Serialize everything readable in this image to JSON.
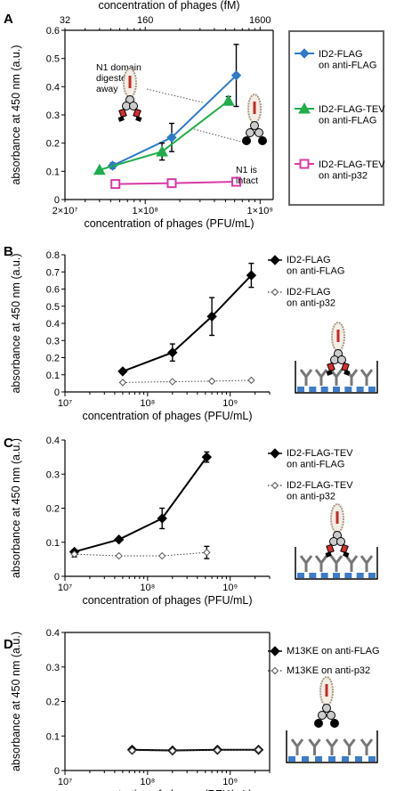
{
  "figure": {
    "panel_labels": [
      "A",
      "B",
      "C",
      "D"
    ]
  },
  "chart_data": [
    {
      "panel": "A",
      "type": "line",
      "title": "",
      "xlabel": "concentration of phages (PFU/mL)",
      "ylabel": "absorbance at 450 nm (a.u.)",
      "x2label": "concentration of phages (fM)",
      "xscale": "log",
      "xlim": [
        20000000,
        1300000000
      ],
      "ylim": [
        0,
        0.6
      ],
      "xticks": [
        {
          "v": 20000000,
          "label": "2×10⁷"
        },
        {
          "v": 100000000,
          "label": "1×10⁸"
        },
        {
          "v": 1000000000,
          "label": "1×10⁹"
        }
      ],
      "x2ticks": [
        {
          "v": 20000000,
          "label": "32"
        },
        {
          "v": 100000000,
          "label": "160"
        },
        {
          "v": 1000000000,
          "label": "1600"
        }
      ],
      "yticks": [
        "0",
        "0.1",
        "0.2",
        "0.3",
        "0.4",
        "0.5",
        "0.6"
      ],
      "legend_position": "right-boxed",
      "series": [
        {
          "name": "ID2-FLAG\non anti-FLAG",
          "color": "#2f7ac5",
          "marker": "diamond",
          "line": "solid",
          "x": [
            52000000,
            170000000,
            620000000
          ],
          "y": [
            0.12,
            0.22,
            0.44
          ],
          "err": [
            0.01,
            0.05,
            0.11
          ]
        },
        {
          "name": "ID2-FLAG-TEV\non anti-FLAG",
          "color": "#1fae4b",
          "marker": "triangle",
          "line": "solid",
          "x": [
            40000000,
            140000000,
            530000000
          ],
          "y": [
            0.105,
            0.17,
            0.35
          ],
          "err": [
            0,
            0.03,
            0.015
          ]
        },
        {
          "name": "ID2-FLAG-TEV\non anti-p32",
          "color": "#d83aa6",
          "marker": "square-open",
          "line": "solid",
          "x": [
            55000000,
            170000000,
            620000000
          ],
          "y": [
            0.055,
            0.058,
            0.063
          ],
          "err": [
            0.004,
            0.004,
            0.004
          ]
        }
      ],
      "annotations": [
        "N1 domain\ndigested\naway",
        "N1 is\nintact"
      ]
    },
    {
      "panel": "B",
      "type": "line",
      "title": "",
      "xlabel": "concentration of phages (PFU/mL)",
      "ylabel": "absorbance at 450 nm (a.u.)",
      "xscale": "log",
      "xlim": [
        10000000,
        3000000000
      ],
      "ylim": [
        0,
        0.8
      ],
      "xticks": [
        {
          "v": 10000000,
          "label": "10⁷"
        },
        {
          "v": 100000000,
          "label": "10⁸"
        },
        {
          "v": 1000000000,
          "label": "10⁹"
        }
      ],
      "yticks": [
        "0",
        "0.1",
        "0.2",
        "0.3",
        "0.4",
        "0.5",
        "0.6",
        "0.7",
        "0.8"
      ],
      "legend_position": "right",
      "series": [
        {
          "name": "ID2-FLAG\non anti-FLAG",
          "color": "#000000",
          "marker": "diamond",
          "line": "solid",
          "x": [
            50000000,
            200000000,
            600000000,
            1800000000
          ],
          "y": [
            0.12,
            0.23,
            0.44,
            0.68
          ],
          "err": [
            0.01,
            0.05,
            0.11,
            0.07
          ]
        },
        {
          "name": "ID2-FLAG\non anti-p32",
          "color": "#000000",
          "marker": "diamond-open",
          "line": "dotted",
          "x": [
            50000000,
            200000000,
            600000000,
            1800000000
          ],
          "y": [
            0.055,
            0.06,
            0.063,
            0.068
          ],
          "err": [
            0,
            0,
            0,
            0
          ]
        }
      ]
    },
    {
      "panel": "C",
      "type": "line",
      "title": "",
      "xlabel": "concentration of phages (PFU/mL)",
      "ylabel": "absorbance at 450 nm (a.u.)",
      "xscale": "log",
      "xlim": [
        10000000,
        3000000000
      ],
      "ylim": [
        0,
        0.4
      ],
      "xticks": [
        {
          "v": 10000000,
          "label": "10⁷"
        },
        {
          "v": 100000000,
          "label": "10⁸"
        },
        {
          "v": 1000000000,
          "label": "10⁹"
        }
      ],
      "yticks": [
        "0",
        "0.1",
        "0.2",
        "0.3",
        "0.4"
      ],
      "legend_position": "right",
      "series": [
        {
          "name": "ID2-FLAG-TEV\non anti-FLAG",
          "color": "#000000",
          "marker": "diamond",
          "line": "solid",
          "x": [
            13000000,
            45000000,
            150000000,
            520000000
          ],
          "y": [
            0.072,
            0.108,
            0.17,
            0.35
          ],
          "err": [
            0.006,
            0.004,
            0.03,
            0.015
          ]
        },
        {
          "name": "ID2-FLAG-TEV\non anti-p32",
          "color": "#000000",
          "marker": "diamond-open",
          "line": "dotted",
          "x": [
            13000000,
            45000000,
            150000000,
            520000000
          ],
          "y": [
            0.065,
            0.06,
            0.06,
            0.07
          ],
          "err": [
            0.008,
            0,
            0,
            0.018
          ]
        }
      ]
    },
    {
      "panel": "D",
      "type": "line",
      "title": "",
      "xlabel": "concentration of phages (PFU/mL)",
      "ylabel": "absorbance at 450 nm (a.u.)",
      "xscale": "log",
      "xlim": [
        10000000,
        3000000000
      ],
      "ylim": [
        0,
        0.4
      ],
      "xticks": [
        {
          "v": 10000000,
          "label": "10⁷"
        },
        {
          "v": 100000000,
          "label": "10⁸"
        },
        {
          "v": 1000000000,
          "label": "10⁹"
        }
      ],
      "yticks": [
        "0",
        "0.1",
        "0.2",
        "0.3",
        "0.4"
      ],
      "legend_position": "right",
      "series": [
        {
          "name": "M13KE on anti-FLAG",
          "color": "#000000",
          "marker": "diamond",
          "line": "solid",
          "x": [
            65000000,
            200000000,
            700000000,
            2200000000
          ],
          "y": [
            0.06,
            0.058,
            0.06,
            0.06
          ],
          "err": [
            0.007,
            0.003,
            0.003,
            0.002
          ]
        },
        {
          "name": "M13KE on anti-p32",
          "color": "#000000",
          "marker": "diamond-open",
          "line": "dotted",
          "x": [
            65000000,
            200000000,
            700000000,
            2200000000
          ],
          "y": [
            0.058,
            0.057,
            0.059,
            0.06
          ],
          "err": [
            0,
            0,
            0,
            0
          ]
        }
      ]
    }
  ]
}
